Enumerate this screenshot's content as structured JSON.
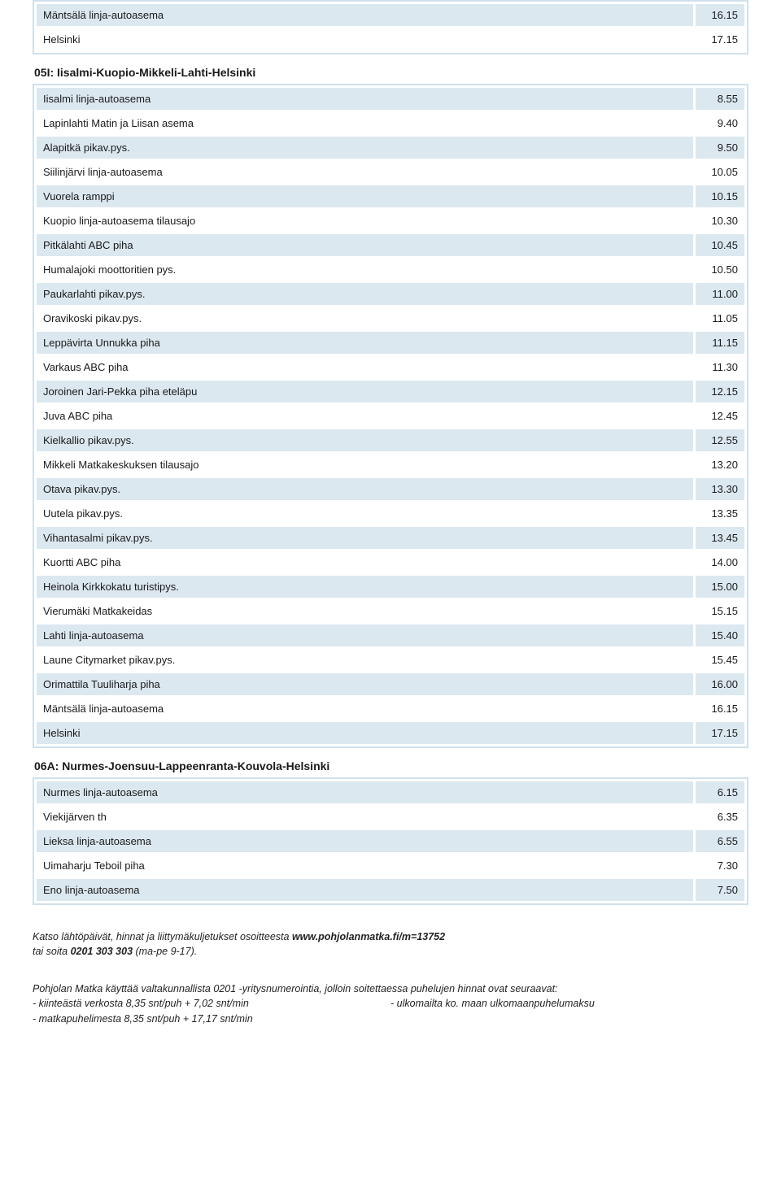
{
  "colors": {
    "row_odd_bg": "#dce8f0",
    "row_even_bg": "#ffffff",
    "table_border": "#d0e0ec",
    "text": "#1a1a1a"
  },
  "table0": {
    "rows": [
      {
        "stop": "Mäntsälä linja-autoasema",
        "time": "16.15"
      },
      {
        "stop": "Helsinki",
        "time": "17.15"
      }
    ]
  },
  "route1": {
    "title": "05I: Iisalmi-Kuopio-Mikkeli-Lahti-Helsinki",
    "rows": [
      {
        "stop": "Iisalmi linja-autoasema",
        "time": "8.55"
      },
      {
        "stop": "Lapinlahti Matin ja Liisan asema",
        "time": "9.40"
      },
      {
        "stop": "Alapitkä pikav.pys.",
        "time": "9.50"
      },
      {
        "stop": "Siilinjärvi linja-autoasema",
        "time": "10.05"
      },
      {
        "stop": "Vuorela ramppi",
        "time": "10.15"
      },
      {
        "stop": "Kuopio linja-autoasema tilausajo",
        "time": "10.30"
      },
      {
        "stop": "Pitkälahti ABC piha",
        "time": "10.45"
      },
      {
        "stop": "Humalajoki moottoritien pys.",
        "time": "10.50"
      },
      {
        "stop": "Paukarlahti pikav.pys.",
        "time": "11.00"
      },
      {
        "stop": "Oravikoski pikav.pys.",
        "time": "11.05"
      },
      {
        "stop": "Leppävirta Unnukka piha",
        "time": "11.15"
      },
      {
        "stop": "Varkaus ABC piha",
        "time": "11.30"
      },
      {
        "stop": "Joroinen Jari-Pekka piha eteläpu",
        "time": "12.15"
      },
      {
        "stop": "Juva ABC piha",
        "time": "12.45"
      },
      {
        "stop": "Kielkallio pikav.pys.",
        "time": "12.55"
      },
      {
        "stop": "Mikkeli Matkakeskuksen tilausajo",
        "time": "13.20"
      },
      {
        "stop": "Otava pikav.pys.",
        "time": "13.30"
      },
      {
        "stop": "Uutela pikav.pys.",
        "time": "13.35"
      },
      {
        "stop": "Vihantasalmi pikav.pys.",
        "time": "13.45"
      },
      {
        "stop": "Kuortti ABC piha",
        "time": "14.00"
      },
      {
        "stop": "Heinola Kirkkokatu turistipys.",
        "time": "15.00"
      },
      {
        "stop": "Vierumäki Matkakeidas",
        "time": "15.15"
      },
      {
        "stop": "Lahti linja-autoasema",
        "time": "15.40"
      },
      {
        "stop": "Laune Citymarket pikav.pys.",
        "time": "15.45"
      },
      {
        "stop": "Orimattila Tuuliharja piha",
        "time": "16.00"
      },
      {
        "stop": "Mäntsälä linja-autoasema",
        "time": "16.15"
      },
      {
        "stop": "Helsinki",
        "time": "17.15"
      }
    ]
  },
  "route2": {
    "title": "06A: Nurmes-Joensuu-Lappeenranta-Kouvola-Helsinki",
    "rows": [
      {
        "stop": "Nurmes linja-autoasema",
        "time": "6.15"
      },
      {
        "stop": "Viekijärven th",
        "time": "6.35"
      },
      {
        "stop": "Lieksa linja-autoasema",
        "time": "6.55"
      },
      {
        "stop": "Uimaharju Teboil piha",
        "time": "7.30"
      },
      {
        "stop": "Eno linja-autoasema",
        "time": "7.50"
      }
    ]
  },
  "footer": {
    "line1_a": "Katso lähtöpäivät, hinnat ja liittymäkuljetukset osoitteesta  ",
    "line1_b": "www.pohjolanmatka.fi/m=13752",
    "line2_a": "tai soita ",
    "line2_b": "0201 303 303",
    "line2_c": "  (ma-pe 9-17).",
    "line3": "Pohjolan Matka käyttää valtakunnallista 0201 -yritysnumerointia, jolloin soitettaessa puhelujen hinnat ovat seuraavat:",
    "line4_left": "- kiinteästä verkosta 8,35 snt/puh + 7,02 snt/min",
    "line4_right": "- ulkomailta ko. maan ulkomaanpuhelumaksu",
    "line5": "- matkapuhelimesta 8,35 snt/puh + 17,17 snt/min"
  }
}
